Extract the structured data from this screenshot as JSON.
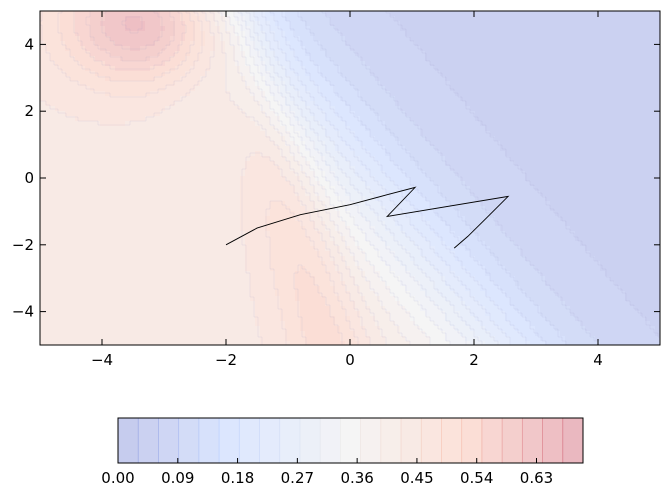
{
  "chart_data": {
    "type": "contour",
    "title": "",
    "xlabel": "",
    "ylabel": "",
    "xlim": [
      -5,
      5
    ],
    "ylim": [
      -5,
      5
    ],
    "x_ticks": [
      -4,
      -2,
      0,
      2,
      4
    ],
    "y_ticks": [
      -4,
      -2,
      0,
      2,
      4
    ],
    "x_tick_labels": [
      "−4",
      "−2",
      "0",
      "2",
      "4"
    ],
    "y_tick_labels": [
      "−4",
      "−2",
      "0",
      "2",
      "4"
    ],
    "colormap": "coolwarm",
    "value_range": [
      0.0,
      0.7
    ],
    "contour_levels": 23,
    "field_peaks": [
      {
        "x": -3.3,
        "y": 4.8,
        "value": 0.7
      },
      {
        "x": 4.5,
        "y": -4.5,
        "value": 0.0
      }
    ],
    "trajectory": {
      "color": "#000000",
      "points": [
        {
          "x": -2.0,
          "y": -2.0
        },
        {
          "x": -1.5,
          "y": -1.5
        },
        {
          "x": -0.8,
          "y": -1.1
        },
        {
          "x": 0.0,
          "y": -0.8
        },
        {
          "x": 0.6,
          "y": -0.5
        },
        {
          "x": 1.05,
          "y": -0.28
        },
        {
          "x": 0.6,
          "y": -1.15
        },
        {
          "x": 2.55,
          "y": -0.55
        },
        {
          "x": 2.2,
          "y": -1.2
        },
        {
          "x": 1.9,
          "y": -1.75
        },
        {
          "x": 1.68,
          "y": -2.1
        }
      ]
    },
    "colorbar": {
      "orientation": "horizontal",
      "tick_values": [
        0.0,
        0.09,
        0.18,
        0.27,
        0.36,
        0.45,
        0.54,
        0.63
      ],
      "tick_labels": [
        "0.00",
        "0.09",
        "0.18",
        "0.27",
        "0.36",
        "0.45",
        "0.54",
        "0.63"
      ]
    }
  }
}
